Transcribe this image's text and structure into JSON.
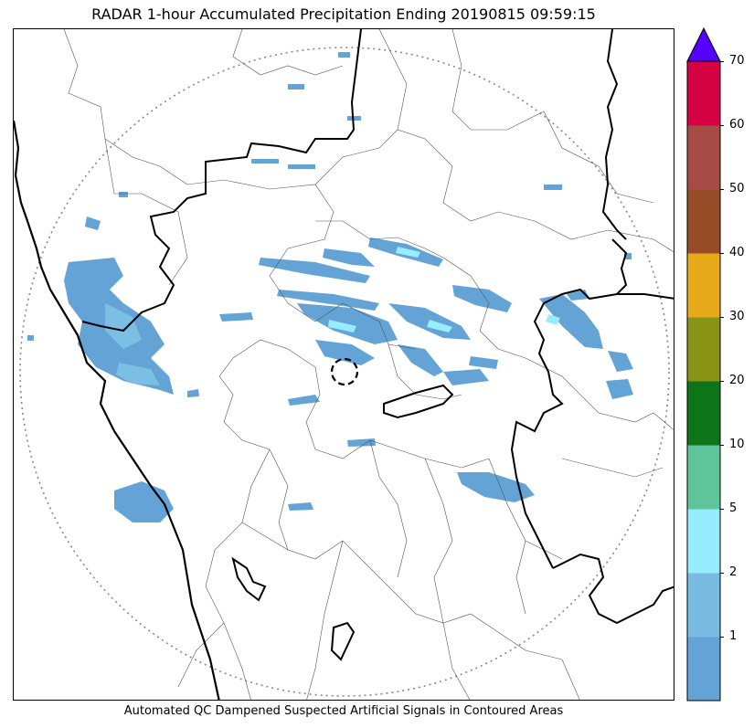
{
  "title": "RADAR 1-hour Accumulated Precipitation Ending 20190815 09:59:15",
  "caption": "Automated QC Dampened Suspected Artificial Signals in Contoured Areas",
  "map": {
    "radar_range_ring": "dotted circle",
    "qc_contour": "dashed circle",
    "boundaries": [
      "state borders (thick black)",
      "district borders (thin gray)",
      "coastline (thick black)"
    ]
  },
  "precip_colors": {
    "light": "#63a3d6",
    "medium": "#7cbfe4",
    "heavy": "#97ecfd"
  },
  "colorbar": {
    "colors": [
      "#63a3d6",
      "#78bce2",
      "#97ecfd",
      "#5fc499",
      "#0d7517",
      "#899417",
      "#e7aa1b",
      "#974d28",
      "#a74b46",
      "#d50142"
    ],
    "extend_color": "#5500ff",
    "tick_labels": [
      "1",
      "2",
      "5",
      "10",
      "20",
      "30",
      "40",
      "50",
      "60",
      "70"
    ],
    "max_value": 70
  }
}
